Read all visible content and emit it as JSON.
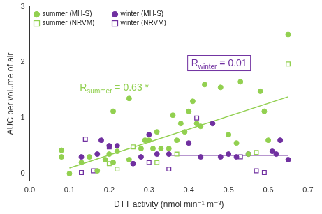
{
  "chart_data": {
    "type": "scatter",
    "x_label": "DTT activity (nmol min⁻¹ m⁻³)",
    "y_label": "AUC per volume of air",
    "xlim": [
      0,
      0.7
    ],
    "xticks": [
      {
        "value": 0,
        "label": "0.0"
      },
      0.1,
      0.2,
      0.3,
      0.4,
      0.5,
      0.6,
      0.7
    ],
    "ylim": [
      -0.13,
      3
    ],
    "yticks": [
      0,
      1,
      2,
      3
    ],
    "grid": false,
    "legend": "top-left",
    "series": [
      {
        "name": "summer (MH-S)",
        "color": "#92d050",
        "marker": "circle",
        "x": [
          0.08,
          0.08,
          0.1,
          0.13,
          0.15,
          0.17,
          0.19,
          0.2,
          0.21,
          0.21,
          0.22,
          0.25,
          0.25,
          0.28,
          0.29,
          0.3,
          0.31,
          0.32,
          0.33,
          0.35,
          0.36,
          0.37,
          0.38,
          0.39,
          0.4,
          0.41,
          0.42,
          0.43,
          0.44,
          0.48,
          0.5,
          0.52,
          0.53,
          0.55,
          0.58,
          0.59,
          0.6,
          0.65
        ],
        "values": [
          0.42,
          0.3,
          0.0,
          0.2,
          0.3,
          0.05,
          0.25,
          0.35,
          1.12,
          0.2,
          0.4,
          0.25,
          1.35,
          0.45,
          0.6,
          0.6,
          0.45,
          0.75,
          0.45,
          0.45,
          1.05,
          0.6,
          0.9,
          0.75,
          1.12,
          1.3,
          0.9,
          0.85,
          1.6,
          1.55,
          0.7,
          0.55,
          1.65,
          0.35,
          1.48,
          1.12,
          0.6,
          2.5
        ]
      },
      {
        "name": "winter (MH-S)",
        "color": "#7030a0",
        "marker": "circle",
        "x": [
          0.13,
          0.17,
          0.18,
          0.2,
          0.22,
          0.26,
          0.28,
          0.3,
          0.32,
          0.35,
          0.4,
          0.43,
          0.46,
          0.48,
          0.5,
          0.52,
          0.55,
          0.61,
          0.62,
          0.63,
          0.65
        ],
        "values": [
          0.3,
          0.35,
          0.6,
          0.5,
          0.5,
          0.18,
          0.3,
          0.7,
          0.35,
          0.35,
          0.55,
          0.3,
          0.9,
          0.3,
          0.35,
          0.3,
          0.35,
          0.4,
          0.35,
          0.6,
          0.25
        ]
      },
      {
        "name": "summer (NRVM)",
        "color": "#92d050",
        "marker": "open-square",
        "x": [
          0.2,
          0.22,
          0.26,
          0.32,
          0.37,
          0.57,
          0.65
        ],
        "values": [
          0.18,
          0.08,
          0.48,
          0.2,
          0.35,
          0.38,
          1.97
        ]
      },
      {
        "name": "winter (NRVM)",
        "color": "#7030a0",
        "marker": "open-square",
        "x": [
          0.13,
          0.14,
          0.16,
          0.2,
          0.3,
          0.35,
          0.42,
          0.53,
          0.57,
          0.59
        ],
        "values": [
          0.02,
          0.62,
          0.05,
          0.48,
          0.2,
          0.08,
          1.0,
          0.3,
          0.05,
          0.02
        ]
      }
    ],
    "trend_lines": [
      {
        "color": "#92d050",
        "x": [
          0.1,
          0.65
        ],
        "values": [
          0.1,
          1.38
        ]
      },
      {
        "color": "#7030a0",
        "x": [
          0.35,
          0.65
        ],
        "values": [
          0.33,
          0.33
        ]
      }
    ],
    "annotations": [
      {
        "main": "R",
        "sub": "summer",
        "rest": " = 0.63 *",
        "color": "#92d050"
      },
      {
        "main": "R",
        "sub": "winter",
        "rest": " = 0.01",
        "color": "#7030a0"
      }
    ]
  }
}
